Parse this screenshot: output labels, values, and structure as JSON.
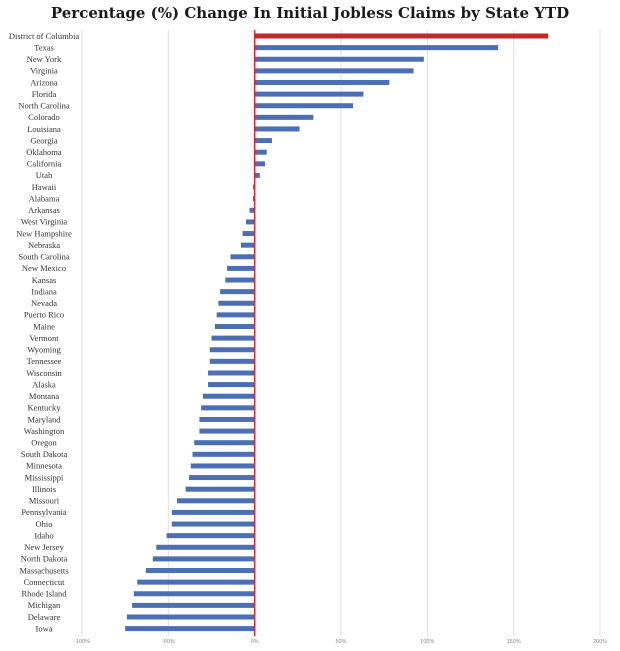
{
  "chart_data": {
    "type": "bar",
    "orientation": "horizontal",
    "title": "Percentage (%) Change In Initial Jobless Claims by State YTD",
    "xlabel": "",
    "ylabel": "",
    "xlim": [
      -100,
      200
    ],
    "x_ticks": [
      -100,
      -50,
      0,
      50,
      100,
      150,
      200
    ],
    "x_tick_labels": [
      "-100%",
      "-50%",
      "0%",
      "50%",
      "100%",
      "150%",
      "200%"
    ],
    "grid": true,
    "legend": "none",
    "colors": {
      "bar": "#4a6fb5",
      "highlight": "#c0282b",
      "zero_line": "#d9232a",
      "grid": "#e0e0e0"
    },
    "highlight_category": "District of Columbia",
    "categories": [
      "District of Columbia",
      "Texas",
      "New York",
      "Virginia",
      "Arizona",
      "Florida",
      "North Carolina",
      "Colorado",
      "Louisiana",
      "Georgia",
      "Oklahoma",
      "California",
      "Utah",
      "Hawaii",
      "Alabama",
      "Arkansas",
      "West Virginia",
      "New Hampshire",
      "Nebraska",
      "South Carolina",
      "New Mexico",
      "Kansas",
      "Indiana",
      "Nevada",
      "Puerto Rico",
      "Maine",
      "Vermont",
      "Wyoming",
      "Tennessee",
      "Wisconsin",
      "Alaska",
      "Montana",
      "Kentucky",
      "Maryland",
      "Washington",
      "Oregon",
      "South Dakota",
      "Minnesota",
      "Mississippi",
      "Illinois",
      "Missouri",
      "Pennsylvania",
      "Ohio",
      "Idaho",
      "New Jersey",
      "North Dakota",
      "Massachusetts",
      "Connecticut",
      "Rhode Island",
      "Michigan",
      "Delaware",
      "Iowa"
    ],
    "values": [
      170,
      141,
      98,
      92,
      78,
      63,
      57,
      34,
      26,
      10,
      7,
      6,
      3,
      -1,
      -1,
      -3,
      -5,
      -7,
      -8,
      -14,
      -16,
      -17,
      -20,
      -21,
      -22,
      -23,
      -25,
      -26,
      -26,
      -27,
      -27,
      -30,
      -31,
      -32,
      -32,
      -35,
      -36,
      -37,
      -38,
      -40,
      -45,
      -48,
      -48,
      -51,
      -57,
      -59,
      -63,
      -68,
      -70,
      -71,
      -74,
      -75
    ]
  }
}
